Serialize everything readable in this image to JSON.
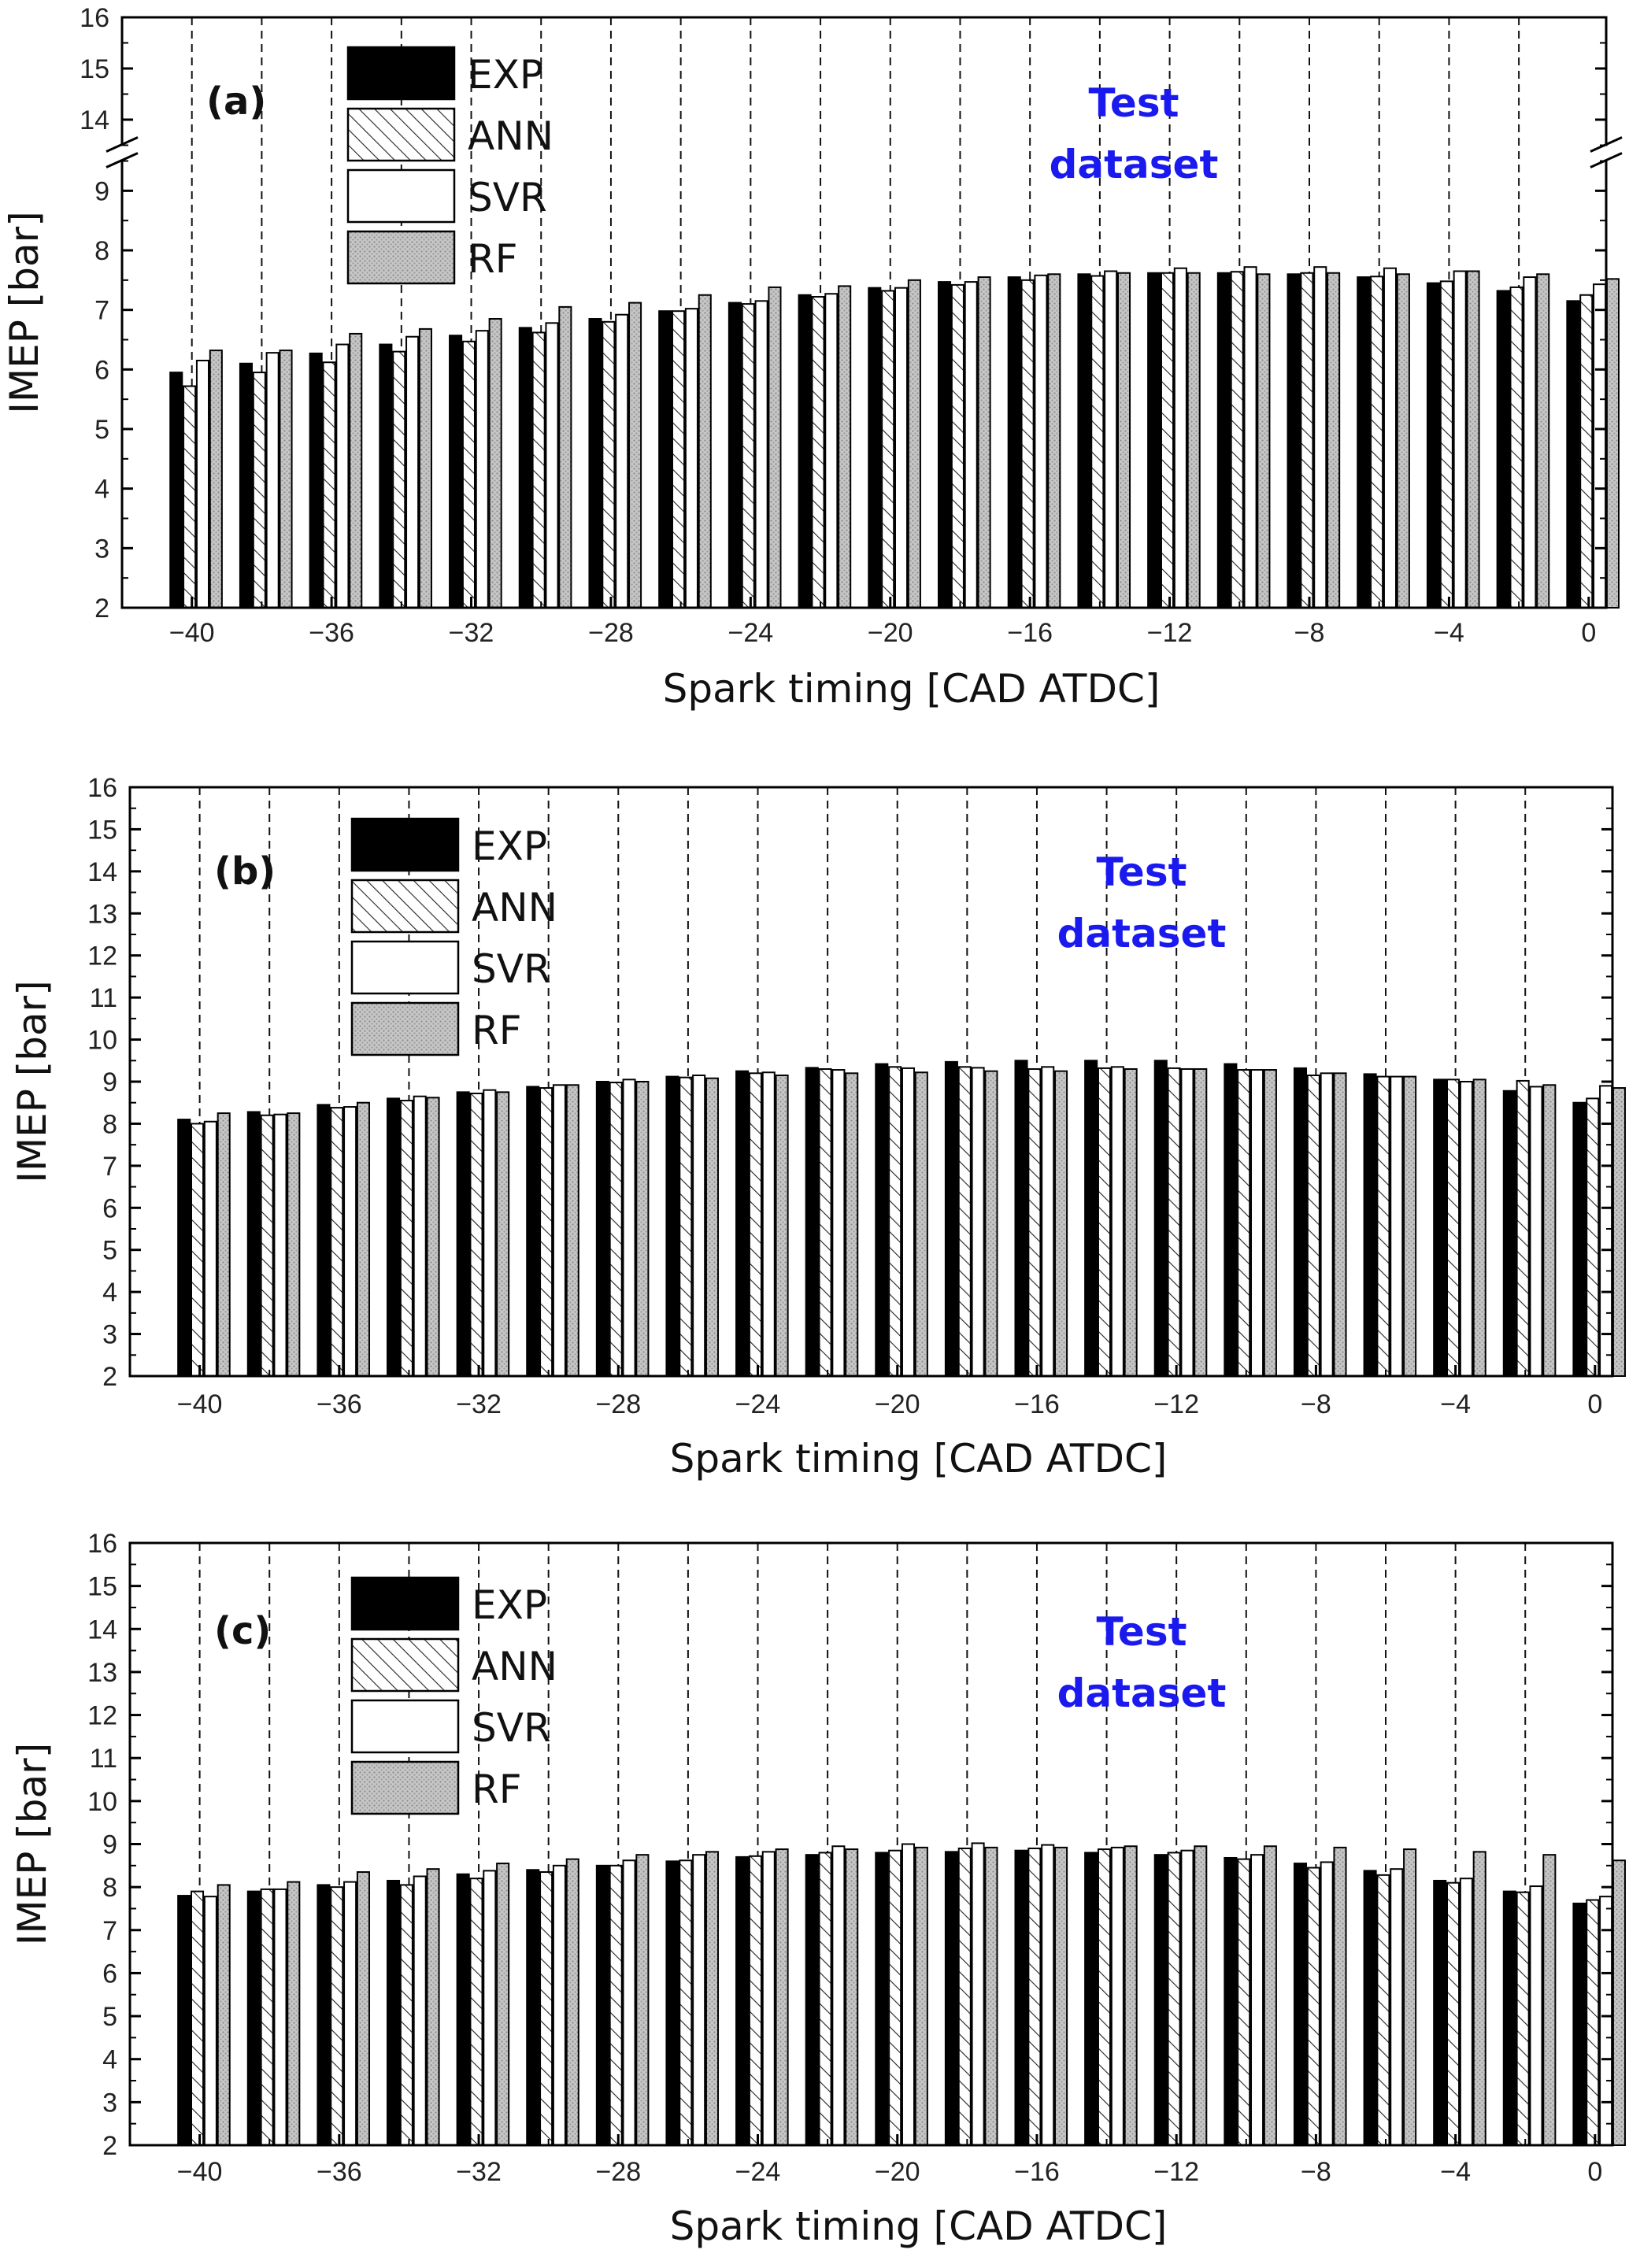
{
  "chart_data": [
    {
      "type": "bar",
      "panel_label": "(a)",
      "title": "",
      "xlabel": "Spark timing [CAD ATDC]",
      "ylabel": "IMEP [bar]",
      "xlim": [
        -41,
        0
      ],
      "ylim": [
        2,
        16
      ],
      "y_axis_break": [
        9.5,
        13.5
      ],
      "yticks": [
        "2",
        "3",
        "4",
        "5",
        "6",
        "7",
        "8",
        "9",
        "14",
        "15",
        "16"
      ],
      "xticks": [
        "-40",
        "-36",
        "-32",
        "-28",
        "-24",
        "-20",
        "-16",
        "-12",
        "-8",
        "-4",
        "0"
      ],
      "x_tick_values": [
        -40,
        -36,
        -32,
        -28,
        -24,
        -20,
        -16,
        -12,
        -8,
        -4,
        0
      ],
      "group_positions": [
        -41,
        -39,
        -37,
        -35,
        -33,
        -31,
        -29,
        -27,
        -25,
        -23,
        -21,
        -19,
        -17,
        -15,
        -13,
        -11,
        -9,
        -7,
        -5,
        -3,
        -1
      ],
      "legend": [
        "EXP",
        "ANN",
        "SVR",
        "RF"
      ],
      "legend_position": "top-left",
      "annotation": [
        "Test",
        "dataset"
      ],
      "series": [
        {
          "name": "EXP",
          "pattern": "solid",
          "values": [
            5.95,
            6.1,
            6.27,
            6.42,
            6.57,
            6.7,
            6.85,
            6.98,
            7.12,
            7.25,
            7.37,
            7.47,
            7.55,
            7.6,
            7.62,
            7.62,
            7.6,
            7.55,
            7.45,
            7.32,
            7.15
          ]
        },
        {
          "name": "ANN",
          "pattern": "hatch",
          "values": [
            5.72,
            5.95,
            6.12,
            6.3,
            6.47,
            6.62,
            6.8,
            6.98,
            7.1,
            7.22,
            7.32,
            7.42,
            7.5,
            7.57,
            7.62,
            7.64,
            7.62,
            7.56,
            7.48,
            7.38,
            7.25
          ]
        },
        {
          "name": "SVR",
          "pattern": "white",
          "values": [
            6.15,
            6.28,
            6.42,
            6.55,
            6.65,
            6.78,
            6.92,
            7.02,
            7.15,
            7.27,
            7.37,
            7.47,
            7.58,
            7.65,
            7.7,
            7.72,
            7.72,
            7.7,
            7.65,
            7.55,
            7.43
          ]
        },
        {
          "name": "RF",
          "pattern": "dots",
          "values": [
            6.32,
            6.32,
            6.6,
            6.68,
            6.85,
            7.05,
            7.12,
            7.25,
            7.38,
            7.4,
            7.5,
            7.55,
            7.6,
            7.62,
            7.62,
            7.6,
            7.62,
            7.6,
            7.65,
            7.6,
            7.52
          ]
        }
      ]
    },
    {
      "type": "bar",
      "panel_label": "(b)",
      "title": "",
      "xlabel": "Spark timing [CAD ATDC]",
      "ylabel": "IMEP [bar]",
      "xlim": [
        -41,
        0
      ],
      "ylim": [
        2,
        16
      ],
      "yticks": [
        "2",
        "3",
        "4",
        "5",
        "6",
        "7",
        "8",
        "9",
        "10",
        "11",
        "12",
        "13",
        "14",
        "15",
        "16"
      ],
      "xticks": [
        "-40",
        "-36",
        "-32",
        "-28",
        "-24",
        "-20",
        "-16",
        "-12",
        "-8",
        "-4",
        "0"
      ],
      "x_tick_values": [
        -40,
        -36,
        -32,
        -28,
        -24,
        -20,
        -16,
        -12,
        -8,
        -4,
        0
      ],
      "group_positions": [
        -41,
        -39,
        -37,
        -35,
        -33,
        -31,
        -29,
        -27,
        -25,
        -23,
        -21,
        -19,
        -17,
        -15,
        -13,
        -11,
        -9,
        -7,
        -5,
        -3,
        -1
      ],
      "legend": [
        "EXP",
        "ANN",
        "SVR",
        "RF"
      ],
      "legend_position": "top-left",
      "annotation": [
        "Test",
        "dataset"
      ],
      "series": [
        {
          "name": "EXP",
          "pattern": "solid",
          "values": [
            8.1,
            8.28,
            8.45,
            8.6,
            8.75,
            8.88,
            9.0,
            9.12,
            9.25,
            9.33,
            9.42,
            9.47,
            9.5,
            9.5,
            9.5,
            9.42,
            9.32,
            9.18,
            9.05,
            8.78,
            8.5
          ]
        },
        {
          "name": "ANN",
          "pattern": "hatch",
          "values": [
            8.0,
            8.2,
            8.38,
            8.55,
            8.72,
            8.85,
            8.98,
            9.1,
            9.2,
            9.3,
            9.35,
            9.35,
            9.3,
            9.32,
            9.32,
            9.28,
            9.15,
            9.12,
            9.05,
            9.02,
            8.6
          ]
        },
        {
          "name": "SVR",
          "pattern": "white",
          "values": [
            8.05,
            8.22,
            8.4,
            8.65,
            8.8,
            8.92,
            9.05,
            9.15,
            9.22,
            9.28,
            9.32,
            9.33,
            9.35,
            9.35,
            9.3,
            9.28,
            9.2,
            9.12,
            9.0,
            8.88,
            8.9
          ]
        },
        {
          "name": "RF",
          "pattern": "dots",
          "values": [
            8.25,
            8.25,
            8.5,
            8.62,
            8.75,
            8.92,
            9.0,
            9.08,
            9.15,
            9.2,
            9.22,
            9.25,
            9.25,
            9.3,
            9.3,
            9.28,
            9.2,
            9.12,
            9.05,
            8.92,
            8.85
          ]
        }
      ]
    },
    {
      "type": "bar",
      "panel_label": "(c)",
      "title": "",
      "xlabel": "Spark timing [CAD ATDC]",
      "ylabel": "IMEP [bar]",
      "xlim": [
        -41,
        0
      ],
      "ylim": [
        2,
        16
      ],
      "yticks": [
        "2",
        "3",
        "4",
        "5",
        "6",
        "7",
        "8",
        "9",
        "10",
        "11",
        "12",
        "13",
        "14",
        "15",
        "16"
      ],
      "xticks": [
        "-40",
        "-36",
        "-32",
        "-28",
        "-24",
        "-20",
        "-16",
        "-12",
        "-8",
        "-4",
        "0"
      ],
      "x_tick_values": [
        -40,
        -36,
        -32,
        -28,
        -24,
        -20,
        -16,
        -12,
        -8,
        -4,
        0
      ],
      "group_positions": [
        -41,
        -39,
        -37,
        -35,
        -33,
        -31,
        -29,
        -27,
        -25,
        -23,
        -21,
        -19,
        -17,
        -15,
        -13,
        -11,
        -9,
        -7,
        -5,
        -3,
        -1
      ],
      "legend": [
        "EXP",
        "ANN",
        "SVR",
        "RF"
      ],
      "legend_position": "top-left",
      "annotation": [
        "Test",
        "dataset"
      ],
      "series": [
        {
          "name": "EXP",
          "pattern": "solid",
          "values": [
            7.8,
            7.9,
            8.05,
            8.15,
            8.3,
            8.4,
            8.5,
            8.6,
            8.7,
            8.75,
            8.8,
            8.82,
            8.85,
            8.8,
            8.75,
            8.68,
            8.55,
            8.38,
            8.15,
            7.9,
            7.62
          ]
        },
        {
          "name": "ANN",
          "pattern": "hatch",
          "values": [
            7.9,
            7.95,
            8.0,
            8.05,
            8.2,
            8.35,
            8.5,
            8.62,
            8.72,
            8.8,
            8.85,
            8.9,
            8.9,
            8.88,
            8.8,
            8.65,
            8.45,
            8.28,
            8.1,
            7.88,
            7.7
          ]
        },
        {
          "name": "SVR",
          "pattern": "white",
          "values": [
            7.78,
            7.95,
            8.12,
            8.25,
            8.38,
            8.5,
            8.62,
            8.75,
            8.82,
            8.95,
            9.0,
            9.02,
            8.98,
            8.92,
            8.85,
            8.75,
            8.58,
            8.42,
            8.2,
            8.02,
            7.78
          ]
        },
        {
          "name": "RF",
          "pattern": "dots",
          "values": [
            8.05,
            8.12,
            8.35,
            8.42,
            8.55,
            8.65,
            8.75,
            8.82,
            8.88,
            8.88,
            8.92,
            8.92,
            8.92,
            8.95,
            8.95,
            8.95,
            8.92,
            8.88,
            8.82,
            8.75,
            8.62
          ]
        }
      ]
    }
  ]
}
